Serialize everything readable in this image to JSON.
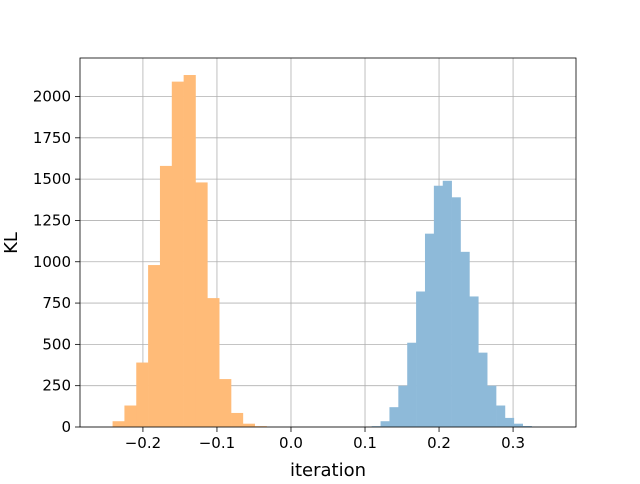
{
  "chart_data": {
    "type": "bar",
    "xlabel": "iteration",
    "ylabel": "KL",
    "xlim": [
      -0.285,
      0.385
    ],
    "ylim": [
      0,
      2233
    ],
    "grid": true,
    "x_ticks": [
      -0.2,
      -0.1,
      0.0,
      0.1,
      0.2,
      0.3
    ],
    "x_tick_labels": [
      "−0.2",
      "−0.1",
      "0.0",
      "0.1",
      "0.2",
      "0.3"
    ],
    "y_ticks": [
      0,
      250,
      500,
      750,
      1000,
      1250,
      1500,
      1750,
      2000
    ],
    "y_tick_labels": [
      "0",
      "250",
      "500",
      "750",
      "1000",
      "1250",
      "1500",
      "1750",
      "2000"
    ],
    "series": [
      {
        "color": "#ffbb78",
        "bin_width": 0.016,
        "bin_starts": [
          -0.241,
          -0.225,
          -0.209,
          -0.193,
          -0.177,
          -0.161,
          -0.145,
          -0.129,
          -0.113,
          -0.097,
          -0.081,
          -0.065,
          -0.049
        ],
        "values": [
          35,
          130,
          390,
          980,
          1580,
          2090,
          2130,
          1480,
          780,
          290,
          85,
          20,
          5
        ]
      },
      {
        "color": "#8ebad9",
        "bin_width": 0.012,
        "bin_starts": [
          0.109,
          0.121,
          0.133,
          0.145,
          0.157,
          0.169,
          0.181,
          0.193,
          0.205,
          0.217,
          0.229,
          0.241,
          0.253,
          0.265,
          0.277,
          0.289,
          0.301,
          0.313,
          0.325
        ],
        "values": [
          5,
          35,
          120,
          250,
          510,
          820,
          1170,
          1460,
          1490,
          1390,
          1060,
          790,
          450,
          250,
          130,
          55,
          20,
          6,
          2
        ]
      }
    ]
  }
}
